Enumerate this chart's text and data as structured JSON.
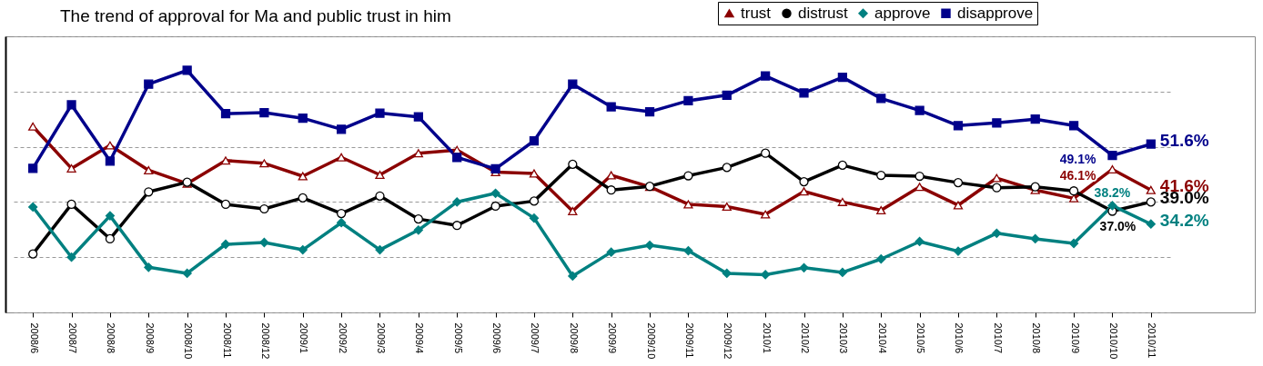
{
  "chart_data": {
    "type": "line",
    "title": "The trend of approval for Ma and public trust in him",
    "categories": [
      "2008/6",
      "2008/7",
      "2008/8",
      "2008/9",
      "2008/10",
      "2008/11",
      "2008/12",
      "2009/1",
      "2009/2",
      "2009/3",
      "2009/4",
      "2009/5",
      "2009/6",
      "2009/7",
      "2009/8",
      "2009/9",
      "2009/10",
      "2009/11",
      "2009/12",
      "2010/1",
      "2010/2",
      "2010/3",
      "2010/4",
      "2010/5",
      "2010/6",
      "2010/7",
      "2010/8",
      "2010/9",
      "2010/10",
      "2010/11"
    ],
    "series": [
      {
        "name": "trust",
        "color": "#8b0000",
        "marker": "triangle",
        "values": [
          55.4,
          46.3,
          51.3,
          45.9,
          43.0,
          48.0,
          47.4,
          44.6,
          48.7,
          44.9,
          49.6,
          50.3,
          45.5,
          45.2,
          37.0,
          44.8,
          42.3,
          38.5,
          38.0,
          36.3,
          41.3,
          39.0,
          37.2,
          42.3,
          38.3,
          44.2,
          41.6,
          39.8,
          46.1,
          41.6
        ],
        "value_labels": [
          null,
          null,
          null,
          null,
          null,
          null,
          null,
          null,
          null,
          null,
          null,
          null,
          null,
          null,
          null,
          null,
          null,
          null,
          null,
          null,
          null,
          null,
          null,
          null,
          null,
          null,
          null,
          null,
          "46.1%",
          "41.6%"
        ]
      },
      {
        "name": "distrust",
        "color": "#000000",
        "marker": "circle",
        "values": [
          27.7,
          38.5,
          31.0,
          41.2,
          43.3,
          38.5,
          37.5,
          39.9,
          36.5,
          40.3,
          35.3,
          33.9,
          38.1,
          39.2,
          47.2,
          41.6,
          42.4,
          44.7,
          46.5,
          49.6,
          43.4,
          47.0,
          44.8,
          44.6,
          43.2,
          42.1,
          42.3,
          41.4,
          37.0,
          39.0
        ],
        "value_labels": [
          null,
          null,
          null,
          null,
          null,
          null,
          null,
          null,
          null,
          null,
          null,
          null,
          null,
          null,
          null,
          null,
          null,
          null,
          null,
          null,
          null,
          null,
          null,
          null,
          null,
          null,
          null,
          null,
          "37.0%",
          "39.0%"
        ]
      },
      {
        "name": "approve",
        "color": "#008080",
        "marker": "diamond",
        "values": [
          37.9,
          27.0,
          36.0,
          24.8,
          23.5,
          29.8,
          30.2,
          28.6,
          34.5,
          28.6,
          32.9,
          39.0,
          40.9,
          35.5,
          22.9,
          28.1,
          29.6,
          28.4,
          23.5,
          23.2,
          24.7,
          23.7,
          26.6,
          30.4,
          28.3,
          32.2,
          31.0,
          30.0,
          38.2,
          34.2
        ],
        "value_labels": [
          null,
          null,
          null,
          null,
          null,
          null,
          null,
          null,
          null,
          null,
          null,
          null,
          null,
          null,
          null,
          null,
          null,
          null,
          null,
          null,
          null,
          null,
          null,
          null,
          null,
          null,
          null,
          null,
          "38.2%",
          "34.2%"
        ]
      },
      {
        "name": "disapprove",
        "color": "#00008b",
        "marker": "square",
        "values": [
          46.3,
          60.1,
          47.9,
          64.6,
          67.6,
          58.2,
          58.4,
          57.2,
          54.8,
          58.3,
          57.5,
          48.7,
          46.2,
          52.3,
          64.6,
          59.7,
          58.6,
          61.0,
          62.2,
          66.4,
          62.7,
          66.1,
          61.5,
          58.9,
          55.6,
          56.2,
          57.0,
          55.6,
          49.1,
          51.6
        ],
        "value_labels": [
          null,
          null,
          null,
          null,
          null,
          null,
          null,
          null,
          null,
          null,
          null,
          null,
          null,
          null,
          null,
          null,
          null,
          null,
          null,
          null,
          null,
          null,
          null,
          null,
          null,
          null,
          null,
          null,
          "49.1%",
          "51.6%"
        ]
      }
    ],
    "ylim": [
      15,
      75
    ],
    "yticks": [
      {
        "value": 15,
        "label": null
      },
      {
        "value": 27,
        "label": null
      },
      {
        "value": 39,
        "label": null
      },
      {
        "value": 51,
        "label": null
      },
      {
        "value": 63,
        "label": null
      },
      {
        "value": 75,
        "label": null
      }
    ],
    "grid": "y",
    "legend": "top right",
    "tick_labels": "x",
    "line_style": "solid"
  }
}
